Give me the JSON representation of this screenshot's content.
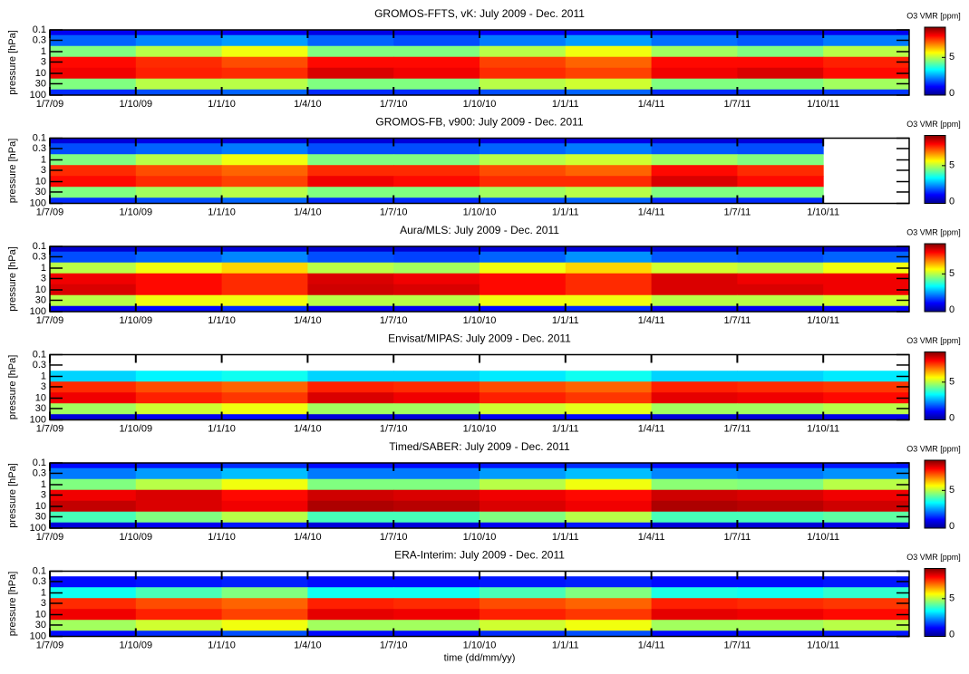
{
  "chart_data": [
    {
      "type": "heatmap",
      "title": "GROMOS-FFTS, vK: July 2009 - Dec. 2011",
      "ylabel": "pressure [hPa]",
      "colorbar_label": "O3 VMR [ppm]",
      "log_y": true,
      "ylim": [
        100,
        0.1
      ],
      "yticks": [
        0.1,
        0.3,
        1,
        3,
        10,
        30,
        100
      ],
      "levels": [
        0.1,
        0.3,
        1,
        3,
        10,
        30,
        100
      ],
      "xlim": [
        0,
        30
      ],
      "xticks": [
        {
          "value": 0,
          "label": "1/7/09"
        },
        {
          "value": 3,
          "label": "1/10/09"
        },
        {
          "value": 6,
          "label": "1/1/10"
        },
        {
          "value": 9,
          "label": "1/4/10"
        },
        {
          "value": 12,
          "label": "1/7/10"
        },
        {
          "value": 15,
          "label": "1/10/10"
        },
        {
          "value": 18,
          "label": "1/1/11"
        },
        {
          "value": 21,
          "label": "1/4/11"
        },
        {
          "value": 24,
          "label": "1/7/11"
        },
        {
          "value": 27,
          "label": "1/10/11"
        }
      ],
      "xbins": [
        0,
        3,
        6,
        9,
        12,
        15,
        18,
        21,
        24,
        27,
        30
      ],
      "clim": [
        0,
        9
      ],
      "cticks": [
        0,
        5
      ],
      "values": [
        [
          1,
          1.2,
          1,
          0.9,
          1,
          1.1,
          1.2,
          1,
          0.9,
          1
        ],
        [
          2,
          2.3,
          2.5,
          2,
          1.8,
          2.2,
          2.5,
          2.1,
          1.9,
          2.2
        ],
        [
          4.5,
          5,
          5.5,
          4.5,
          4.5,
          5,
          5.5,
          4.8,
          4.5,
          5
        ],
        [
          7.8,
          7.5,
          7.2,
          7.8,
          7.8,
          7.3,
          7,
          7.8,
          7.8,
          7.6
        ],
        [
          8,
          7.6,
          7.5,
          8.2,
          8,
          7.5,
          7.3,
          8,
          8.2,
          7.8
        ],
        [
          4.5,
          5,
          5,
          4.5,
          4.5,
          5,
          5.2,
          4.5,
          4.5,
          4.8
        ],
        [
          1.5,
          1.8,
          2,
          1.5,
          1.5,
          1.8,
          2,
          1.5,
          1.5,
          1.6
        ]
      ]
    },
    {
      "type": "heatmap",
      "title": "GROMOS-FB, v900: July 2009 - Dec. 2011",
      "ylabel": "pressure [hPa]",
      "colorbar_label": "O3 VMR [ppm]",
      "log_y": true,
      "ylim": [
        100,
        0.1
      ],
      "yticks": [
        0.1,
        0.3,
        1,
        3,
        10,
        30,
        100
      ],
      "levels": [
        0.1,
        0.3,
        1,
        3,
        10,
        30,
        100
      ],
      "xlim": [
        0,
        30
      ],
      "xticks": [
        {
          "value": 0,
          "label": "1/7/09"
        },
        {
          "value": 3,
          "label": "1/10/09"
        },
        {
          "value": 6,
          "label": "1/1/10"
        },
        {
          "value": 9,
          "label": "1/4/10"
        },
        {
          "value": 12,
          "label": "1/7/10"
        },
        {
          "value": 15,
          "label": "1/10/10"
        },
        {
          "value": 18,
          "label": "1/1/11"
        },
        {
          "value": 21,
          "label": "1/4/11"
        },
        {
          "value": 24,
          "label": "1/7/11"
        },
        {
          "value": 27,
          "label": "1/10/11"
        }
      ],
      "xbins": [
        0,
        3,
        6,
        9,
        12,
        15,
        18,
        21,
        24,
        27,
        30
      ],
      "clim": [
        0,
        9
      ],
      "cticks": [
        0,
        5
      ],
      "values": [
        [
          0.8,
          0.9,
          0.8,
          0.8,
          0.8,
          0.9,
          0.9,
          0.8,
          0.8,
          null
        ],
        [
          1.8,
          2,
          2.2,
          1.8,
          1.8,
          2,
          2.2,
          1.9,
          1.8,
          null
        ],
        [
          4.5,
          5,
          5.5,
          4.5,
          4.5,
          5,
          5.2,
          4.8,
          4.5,
          null
        ],
        [
          7.5,
          7.2,
          7,
          7.5,
          7.5,
          7.2,
          7,
          7.8,
          7.5,
          null
        ],
        [
          7.8,
          7.5,
          7.3,
          8,
          7.8,
          7.5,
          7.5,
          8.2,
          7.8,
          null
        ],
        [
          4.5,
          4.8,
          5,
          4.5,
          4.5,
          4.8,
          5,
          4.5,
          4.5,
          null
        ],
        [
          1.5,
          1.8,
          2,
          1.5,
          1.5,
          1.8,
          2,
          1.5,
          1.5,
          null
        ]
      ]
    },
    {
      "type": "heatmap",
      "title": "Aura/MLS: July 2009 - Dec. 2011",
      "ylabel": "pressure [hPa]",
      "colorbar_label": "O3 VMR [ppm]",
      "log_y": true,
      "ylim": [
        100,
        0.1
      ],
      "yticks": [
        0.1,
        0.3,
        1,
        3,
        10,
        30,
        100
      ],
      "levels": [
        0.1,
        0.3,
        1,
        3,
        10,
        30,
        100
      ],
      "xlim": [
        0,
        30
      ],
      "xticks": [
        {
          "value": 0,
          "label": "1/7/09"
        },
        {
          "value": 3,
          "label": "1/10/09"
        },
        {
          "value": 6,
          "label": "1/1/10"
        },
        {
          "value": 9,
          "label": "1/4/10"
        },
        {
          "value": 12,
          "label": "1/7/10"
        },
        {
          "value": 15,
          "label": "1/10/10"
        },
        {
          "value": 18,
          "label": "1/1/11"
        },
        {
          "value": 21,
          "label": "1/4/11"
        },
        {
          "value": 24,
          "label": "1/7/11"
        },
        {
          "value": 27,
          "label": "1/10/11"
        }
      ],
      "xbins": [
        0,
        3,
        6,
        9,
        12,
        15,
        18,
        21,
        24,
        27,
        30
      ],
      "clim": [
        0,
        9
      ],
      "cticks": [
        0,
        5
      ],
      "values": [
        [
          0.7,
          0.8,
          0.8,
          0.7,
          0.7,
          0.8,
          0.8,
          0.7,
          0.7,
          0.7
        ],
        [
          1.8,
          2,
          2.3,
          1.8,
          1.7,
          2,
          2.4,
          1.9,
          1.8,
          2
        ],
        [
          5,
          5.5,
          6,
          5,
          4.8,
          5.5,
          6,
          5.2,
          5,
          5.5
        ],
        [
          8,
          7.8,
          7.5,
          8.2,
          8,
          7.8,
          7.5,
          8.2,
          8,
          8
        ],
        [
          8.2,
          7.8,
          7.5,
          8.3,
          8.2,
          7.8,
          7.5,
          8.2,
          8.2,
          8
        ],
        [
          5,
          5.5,
          5.5,
          5,
          5,
          5.5,
          5.5,
          5,
          5,
          5.2
        ],
        [
          1,
          1.2,
          1.5,
          1,
          1,
          1.2,
          1.5,
          1,
          1,
          1.1
        ]
      ]
    },
    {
      "type": "heatmap",
      "title": "Envisat/MIPAS: July 2009 - Dec. 2011",
      "ylabel": "pressure [hPa]",
      "colorbar_label": "O3 VMR [ppm]",
      "log_y": true,
      "ylim": [
        100,
        0.1
      ],
      "yticks": [
        0.1,
        0.3,
        1,
        3,
        10,
        30,
        100
      ],
      "levels": [
        0.1,
        0.3,
        1,
        3,
        10,
        30,
        100
      ],
      "xlim": [
        0,
        30
      ],
      "xticks": [
        {
          "value": 0,
          "label": "1/7/09"
        },
        {
          "value": 3,
          "label": "1/10/09"
        },
        {
          "value": 6,
          "label": "1/1/10"
        },
        {
          "value": 9,
          "label": "1/4/10"
        },
        {
          "value": 12,
          "label": "1/7/10"
        },
        {
          "value": 15,
          "label": "1/10/10"
        },
        {
          "value": 18,
          "label": "1/1/11"
        },
        {
          "value": 21,
          "label": "1/4/11"
        },
        {
          "value": 24,
          "label": "1/7/11"
        },
        {
          "value": 27,
          "label": "1/10/11"
        }
      ],
      "xbins": [
        0,
        3,
        6,
        9,
        12,
        15,
        18,
        21,
        24,
        27,
        30
      ],
      "clim": [
        0,
        9
      ],
      "cticks": [
        0,
        5
      ],
      "values": [
        [
          null,
          null,
          null,
          null,
          null,
          null,
          null,
          null,
          null,
          null
        ],
        [
          null,
          null,
          null,
          null,
          null,
          null,
          null,
          null,
          null,
          null
        ],
        [
          3,
          3.3,
          3.5,
          3,
          3,
          3.2,
          3.5,
          3,
          3,
          3.2
        ],
        [
          7.5,
          7.2,
          7,
          7.6,
          7.5,
          7.2,
          7,
          7.6,
          7.5,
          7.4
        ],
        [
          8,
          7.6,
          7.4,
          8.2,
          8,
          7.6,
          7.4,
          8.1,
          8,
          7.8
        ],
        [
          4.8,
          5.2,
          5.5,
          4.8,
          4.8,
          5.2,
          5.4,
          4.8,
          4.8,
          5
        ],
        [
          0.8,
          1,
          1.2,
          0.8,
          0.8,
          1,
          1.2,
          0.8,
          0.8,
          0.9
        ]
      ]
    },
    {
      "type": "heatmap",
      "title": "Timed/SABER: July 2009 - Dec. 2011",
      "ylabel": "pressure [hPa]",
      "colorbar_label": "O3 VMR [ppm]",
      "log_y": true,
      "ylim": [
        100,
        0.1
      ],
      "yticks": [
        0.1,
        0.3,
        1,
        3,
        10,
        30,
        100
      ],
      "levels": [
        0.1,
        0.3,
        1,
        3,
        10,
        30,
        100
      ],
      "xlim": [
        0,
        30
      ],
      "xticks": [
        {
          "value": 0,
          "label": "1/7/09"
        },
        {
          "value": 3,
          "label": "1/10/09"
        },
        {
          "value": 6,
          "label": "1/1/10"
        },
        {
          "value": 9,
          "label": "1/4/10"
        },
        {
          "value": 12,
          "label": "1/7/10"
        },
        {
          "value": 15,
          "label": "1/10/10"
        },
        {
          "value": 18,
          "label": "1/1/11"
        },
        {
          "value": 21,
          "label": "1/4/11"
        },
        {
          "value": 24,
          "label": "1/7/11"
        },
        {
          "value": 27,
          "label": "1/10/11"
        }
      ],
      "xbins": [
        0,
        3,
        6,
        9,
        12,
        15,
        18,
        21,
        24,
        27,
        30
      ],
      "clim": [
        0,
        9
      ],
      "cticks": [
        0,
        5
      ],
      "values": [
        [
          1.2,
          1.3,
          1.5,
          1.2,
          1.2,
          1.3,
          1.5,
          1.2,
          1.2,
          1.3
        ],
        [
          2.2,
          2.5,
          2.8,
          2.2,
          2.2,
          2.5,
          2.8,
          2.3,
          2.2,
          2.4
        ],
        [
          4.5,
          5,
          5.5,
          4.5,
          4.5,
          5,
          5.5,
          4.6,
          4.5,
          5
        ],
        [
          8,
          8.2,
          7.8,
          8.3,
          8.2,
          8,
          7.8,
          8.3,
          8.2,
          8
        ],
        [
          8.4,
          8.2,
          8,
          8.6,
          8.5,
          8.2,
          8,
          8.6,
          8.5,
          8.3
        ],
        [
          4,
          4.5,
          5,
          4,
          4,
          4.5,
          5,
          4,
          4,
          4.2
        ],
        [
          0.8,
          1,
          1.3,
          0.8,
          0.8,
          1,
          1.3,
          0.8,
          0.8,
          0.9
        ]
      ]
    },
    {
      "type": "heatmap",
      "title": "ERA-Interim: July 2009 - Dec. 2011",
      "ylabel": "pressure [hPa]",
      "colorbar_label": "O3 VMR [ppm]",
      "xlabel": "time (dd/mm/yy)",
      "log_y": true,
      "ylim": [
        100,
        0.1
      ],
      "yticks": [
        0.1,
        0.3,
        1,
        3,
        10,
        30,
        100
      ],
      "levels": [
        0.1,
        0.3,
        1,
        3,
        10,
        30,
        100
      ],
      "xlim": [
        0,
        30
      ],
      "xticks": [
        {
          "value": 0,
          "label": "1/7/09"
        },
        {
          "value": 3,
          "label": "1/10/09"
        },
        {
          "value": 6,
          "label": "1/1/10"
        },
        {
          "value": 9,
          "label": "1/4/10"
        },
        {
          "value": 12,
          "label": "1/7/10"
        },
        {
          "value": 15,
          "label": "1/10/10"
        },
        {
          "value": 18,
          "label": "1/1/11"
        },
        {
          "value": 21,
          "label": "1/4/11"
        },
        {
          "value": 24,
          "label": "1/7/11"
        },
        {
          "value": 27,
          "label": "1/10/11"
        }
      ],
      "xbins": [
        0,
        3,
        6,
        9,
        12,
        15,
        18,
        21,
        24,
        27,
        30
      ],
      "clim": [
        0,
        9
      ],
      "cticks": [
        0,
        5
      ],
      "values": [
        [
          null,
          null,
          null,
          null,
          null,
          null,
          null,
          null,
          null,
          null
        ],
        [
          1.2,
          1.3,
          1.4,
          1.2,
          1.2,
          1.3,
          1.4,
          1.2,
          1.2,
          1.3
        ],
        [
          3.5,
          4,
          4.5,
          3.5,
          3.5,
          4,
          4.5,
          3.6,
          3.5,
          3.8
        ],
        [
          7.5,
          7.2,
          7,
          7.6,
          7.5,
          7.2,
          7,
          7.6,
          7.5,
          7.4
        ],
        [
          8,
          7.6,
          7.3,
          8.1,
          8,
          7.6,
          7.4,
          8.1,
          8,
          7.8
        ],
        [
          4.8,
          5.2,
          5.5,
          4.8,
          4.8,
          5.2,
          5.5,
          4.8,
          4.8,
          5
        ],
        [
          1.2,
          1.5,
          1.8,
          1.2,
          1.2,
          1.5,
          1.8,
          1.2,
          1.2,
          1.3
        ]
      ]
    }
  ]
}
